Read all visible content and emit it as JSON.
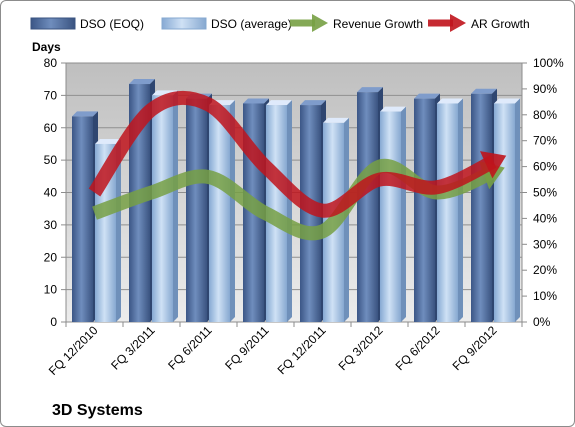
{
  "chart_data": {
    "type": "bar",
    "title": "",
    "company": "3D Systems",
    "ylabel_left": "Days",
    "categories": [
      "FQ 12/2010",
      "FQ 3/2011",
      "FQ 6/2011",
      "FQ 9/2011",
      "FQ 12/2011",
      "FQ 3/2012",
      "FQ 6/2012",
      "FQ 9/2012"
    ],
    "ylim_left": [
      0,
      80
    ],
    "left_ticks": [
      "0",
      "10",
      "20",
      "30",
      "40",
      "50",
      "60",
      "70",
      "80"
    ],
    "ylim_right": [
      0,
      100
    ],
    "right_ticks": [
      "0%",
      "10%",
      "20%",
      "30%",
      "40%",
      "50%",
      "60%",
      "70%",
      "80%",
      "90%",
      "100%"
    ],
    "series": [
      {
        "name": "DSO (EOQ)",
        "type": "bar",
        "axis": "left",
        "values": [
          63.5,
          73.5,
          69,
          67.5,
          67,
          71,
          69,
          70.5
        ]
      },
      {
        "name": "DSO (average)",
        "type": "bar",
        "axis": "left",
        "values": [
          55,
          70,
          67,
          67,
          61.5,
          65,
          67.5,
          67.5
        ]
      },
      {
        "name": "Revenue Growth",
        "type": "line",
        "axis": "right",
        "values": [
          42,
          50,
          56,
          42,
          35,
          60,
          50,
          58
        ]
      },
      {
        "name": "AR Growth",
        "type": "line",
        "axis": "right",
        "values": [
          50,
          82,
          84,
          60,
          43,
          55,
          52,
          62
        ]
      }
    ],
    "legend": "top",
    "colors": {
      "dso_eoq": "#4f6d9e",
      "dso_avg": "#a6c4e6",
      "revenue_growth": "#77a044",
      "ar_growth": "#c0141c",
      "plot_bg": "#c0c0c0"
    }
  }
}
